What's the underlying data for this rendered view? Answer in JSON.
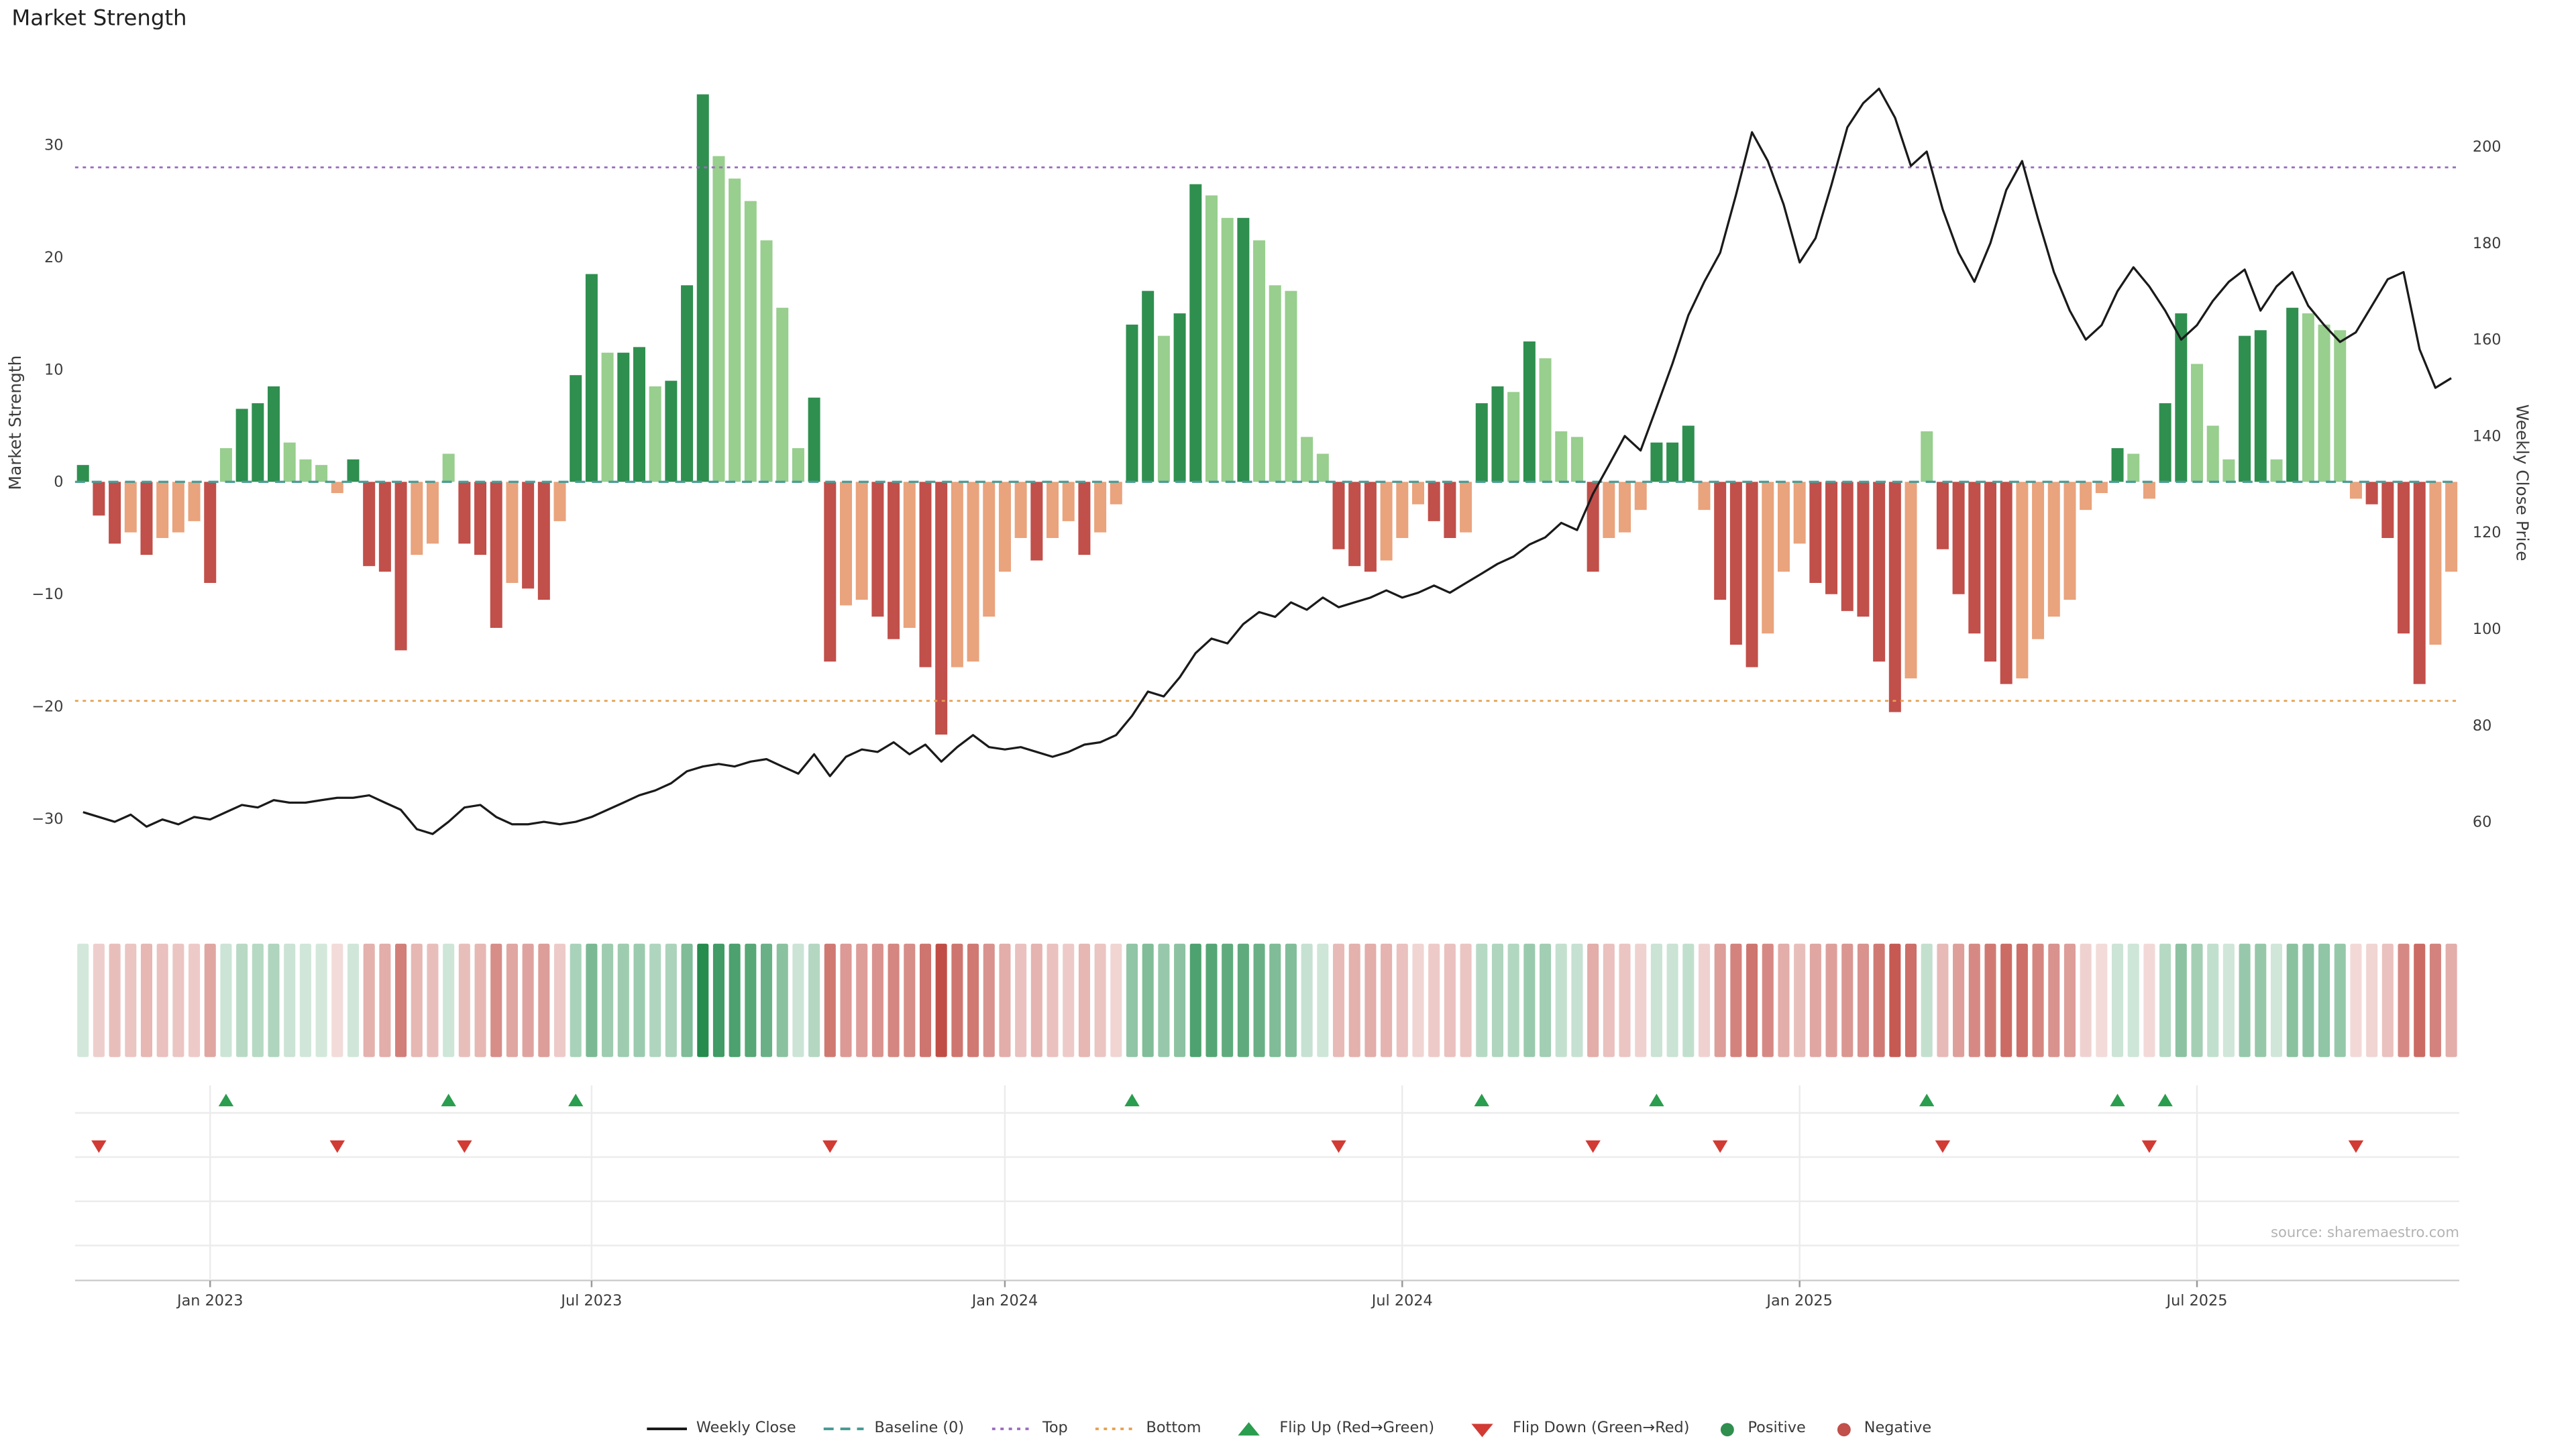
{
  "title": "Market Strength",
  "source": "source: sharemaestro.com",
  "colors": {
    "positive_dark": "#2f8f4f",
    "positive_light": "#98ce8e",
    "negative_dark": "#c14f4a",
    "negative_light": "#e9a37d",
    "heat_positive": "#228b4c",
    "heat_negative": "#c04a42",
    "close_line": "#1a1a1a",
    "baseline": "#4a9c94",
    "top_line": "#9b6bbf",
    "bottom_line": "#e5a04e",
    "flip_up": "#2a9d4e",
    "flip_down": "#d23b34",
    "grid": "#ececec",
    "axis_line": "#cfcfcf",
    "axis_text": "#3c3c3c"
  },
  "chart_data": {
    "type": "bar",
    "combo": [
      "bar",
      "line",
      "heatmap",
      "event-markers"
    ],
    "title": "Market Strength",
    "ylabel_left": "Market Strength",
    "ylabel_right": "Weekly Close Price",
    "ylim_left": [
      -38,
      38
    ],
    "ylim_right": [
      42,
      219
    ],
    "yticks_left": [
      30,
      20,
      10,
      0,
      -10,
      -20,
      -30
    ],
    "yticks_right": [
      200,
      180,
      160,
      140,
      120,
      100,
      80,
      60
    ],
    "xticks": [
      {
        "label": "Jan 2023",
        "week": 8
      },
      {
        "label": "Jul 2023",
        "week": 32
      },
      {
        "label": "Jan 2024",
        "week": 58
      },
      {
        "label": "Jul 2024",
        "week": 83
      },
      {
        "label": "Jan 2025",
        "week": 108
      },
      {
        "label": "Jul 2025",
        "week": 133
      }
    ],
    "top_threshold": 28,
    "bottom_threshold": -19.5,
    "series": [
      {
        "name": "Market Strength",
        "axis": "left",
        "values": [
          1.5,
          -3,
          -5.5,
          -4.5,
          -6.5,
          -5,
          -4.5,
          -3.5,
          -9,
          3,
          6.5,
          7,
          8.5,
          3.5,
          2,
          1.5,
          -1,
          2,
          -7.5,
          -8,
          -15,
          -6.5,
          -5.5,
          2.5,
          -5.5,
          -6.5,
          -13,
          -9,
          -9.5,
          -10.5,
          -3.5,
          9.5,
          18.5,
          11.5,
          11.5,
          12,
          8.5,
          9,
          17.5,
          34.5,
          29,
          27,
          25,
          21.5,
          15.5,
          3,
          7.5,
          -16,
          -11,
          -10.5,
          -12,
          -14,
          -13,
          -16.5,
          -22.5,
          -16.5,
          -16,
          -12,
          -8,
          -5,
          -7,
          -5,
          -3.5,
          -6.5,
          -4.5,
          -2,
          14,
          17,
          13,
          15,
          26.5,
          25.5,
          23.5,
          23.5,
          21.5,
          17.5,
          17,
          4,
          2.5,
          -6,
          -7.5,
          -8,
          -7,
          -5,
          -2,
          -3.5,
          -5,
          -4.5,
          7,
          8.5,
          8,
          12.5,
          11,
          4.5,
          4,
          -8,
          -5,
          -4.5,
          -2.5,
          3.5,
          3.5,
          5,
          -2.5,
          -10.5,
          -14.5,
          -16.5,
          -13.5,
          -8,
          -5.5,
          -9,
          -10,
          -11.5,
          -12,
          -16,
          -20.5,
          -17.5,
          4.5,
          -6,
          -10,
          -13.5,
          -16,
          -18,
          -17.5,
          -14,
          -12,
          -10.5,
          -2.5,
          -1,
          3,
          2.5,
          -1.5,
          7,
          15,
          10.5,
          5,
          2,
          13,
          13.5,
          2,
          15.5,
          15,
          14,
          13.5,
          -1.5,
          -2,
          -5,
          -13.5,
          -18,
          -14.5,
          -8
        ]
      },
      {
        "name": "Weekly Close",
        "axis": "right",
        "values": [
          62,
          61,
          60,
          61.5,
          59,
          60.5,
          59.5,
          61,
          60.5,
          62,
          63.5,
          63,
          64.5,
          64,
          64,
          64.5,
          65,
          65,
          65.5,
          64,
          62.5,
          58.5,
          57.5,
          60,
          63,
          63.5,
          61,
          59.5,
          59.5,
          60,
          59.5,
          60,
          61,
          62.5,
          64,
          65.5,
          66.5,
          68,
          70.5,
          71.5,
          72,
          71.5,
          72.5,
          73,
          71.5,
          70,
          74,
          69.5,
          73.5,
          75,
          74.5,
          76.5,
          74,
          76,
          72.5,
          75.5,
          78,
          75.5,
          75,
          75.5,
          74.5,
          73.5,
          74.5,
          76,
          76.5,
          78,
          82,
          87,
          86,
          90,
          95,
          98,
          97,
          101,
          103.5,
          102.5,
          105.5,
          104,
          106.5,
          104.5,
          105.5,
          106.5,
          108,
          106.5,
          107.5,
          109,
          107.5,
          109.5,
          111.5,
          113.5,
          115,
          117.5,
          119,
          122,
          120.5,
          128,
          134,
          140,
          137,
          146,
          155,
          165,
          172,
          178,
          190,
          203,
          197,
          188,
          176,
          181,
          192,
          204,
          209,
          212,
          206,
          196,
          199,
          187,
          178,
          172,
          180,
          191,
          197,
          185,
          174,
          166,
          160,
          163,
          170,
          175,
          171,
          166,
          160,
          163,
          168,
          172,
          174.5,
          166,
          171,
          174,
          167,
          163,
          159.5,
          161.5,
          167,
          172.5,
          174,
          158,
          150,
          152
        ]
      }
    ],
    "flip_up_weeks": [
      9,
      23,
      31,
      66,
      88,
      99,
      116,
      128,
      131
    ],
    "flip_down_weeks": [
      1,
      16,
      24,
      47,
      79,
      95,
      103,
      117,
      130,
      143
    ]
  },
  "legend": {
    "items": [
      {
        "label": "Weekly Close"
      },
      {
        "label": "Baseline (0)"
      },
      {
        "label": "Top"
      },
      {
        "label": "Bottom"
      },
      {
        "label": "Flip Up (Red→Green)"
      },
      {
        "label": "Flip Down (Green→Red)"
      },
      {
        "label": "Positive"
      },
      {
        "label": "Negative"
      }
    ]
  }
}
